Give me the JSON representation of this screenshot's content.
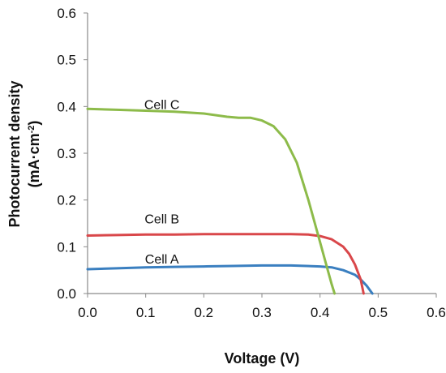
{
  "chart_data": {
    "type": "line",
    "title": "",
    "xlabel": "Voltage (V)",
    "ylabel_line1": "Photocurrent density",
    "ylabel_line2_prefix": "(mA·cm",
    "ylabel_line2_sup": "-2",
    "ylabel_line2_suffix": ")",
    "xlim": [
      0,
      0.6
    ],
    "ylim": [
      0,
      0.6
    ],
    "x_ticks": [
      0.0,
      0.1,
      0.2,
      0.3,
      0.4,
      0.5,
      0.6
    ],
    "x_tick_labels": [
      "0.0",
      "0.1",
      "0.2",
      "0.3",
      "0.4",
      "0.5",
      "0.6"
    ],
    "y_ticks": [
      0.0,
      0.1,
      0.2,
      0.3,
      0.4,
      0.5,
      0.6
    ],
    "y_tick_labels": [
      "0.0",
      "0.1",
      "0.2",
      "0.3",
      "0.4",
      "0.5",
      "0.6"
    ],
    "grid": false,
    "legend": "none",
    "series": [
      {
        "name": "Cell A",
        "color": "#3a7fc0",
        "label_at": [
          0.1,
          0.075
        ],
        "points": [
          [
            0.0,
            0.052
          ],
          [
            0.05,
            0.054
          ],
          [
            0.1,
            0.056
          ],
          [
            0.15,
            0.057
          ],
          [
            0.2,
            0.058
          ],
          [
            0.25,
            0.059
          ],
          [
            0.3,
            0.06
          ],
          [
            0.35,
            0.06
          ],
          [
            0.4,
            0.058
          ],
          [
            0.42,
            0.056
          ],
          [
            0.44,
            0.05
          ],
          [
            0.46,
            0.04
          ],
          [
            0.47,
            0.03
          ],
          [
            0.48,
            0.017
          ],
          [
            0.49,
            0.0
          ]
        ]
      },
      {
        "name": "Cell B",
        "color": "#d9474a",
        "label_at": [
          0.1,
          0.16
        ],
        "points": [
          [
            0.0,
            0.124
          ],
          [
            0.05,
            0.125
          ],
          [
            0.1,
            0.126
          ],
          [
            0.15,
            0.126
          ],
          [
            0.2,
            0.127
          ],
          [
            0.25,
            0.127
          ],
          [
            0.3,
            0.127
          ],
          [
            0.35,
            0.127
          ],
          [
            0.38,
            0.126
          ],
          [
            0.4,
            0.123
          ],
          [
            0.42,
            0.116
          ],
          [
            0.44,
            0.1
          ],
          [
            0.45,
            0.085
          ],
          [
            0.46,
            0.062
          ],
          [
            0.47,
            0.03
          ],
          [
            0.475,
            0.0
          ]
        ]
      },
      {
        "name": "Cell C",
        "color": "#8dbb4a",
        "label_at": [
          0.1,
          0.405
        ],
        "points": [
          [
            0.0,
            0.395
          ],
          [
            0.05,
            0.393
          ],
          [
            0.1,
            0.391
          ],
          [
            0.15,
            0.389
          ],
          [
            0.2,
            0.385
          ],
          [
            0.24,
            0.378
          ],
          [
            0.26,
            0.376
          ],
          [
            0.28,
            0.376
          ],
          [
            0.3,
            0.37
          ],
          [
            0.32,
            0.358
          ],
          [
            0.34,
            0.33
          ],
          [
            0.36,
            0.28
          ],
          [
            0.38,
            0.2
          ],
          [
            0.39,
            0.155
          ],
          [
            0.4,
            0.11
          ],
          [
            0.41,
            0.065
          ],
          [
            0.42,
            0.02
          ],
          [
            0.425,
            0.0
          ]
        ]
      }
    ]
  }
}
